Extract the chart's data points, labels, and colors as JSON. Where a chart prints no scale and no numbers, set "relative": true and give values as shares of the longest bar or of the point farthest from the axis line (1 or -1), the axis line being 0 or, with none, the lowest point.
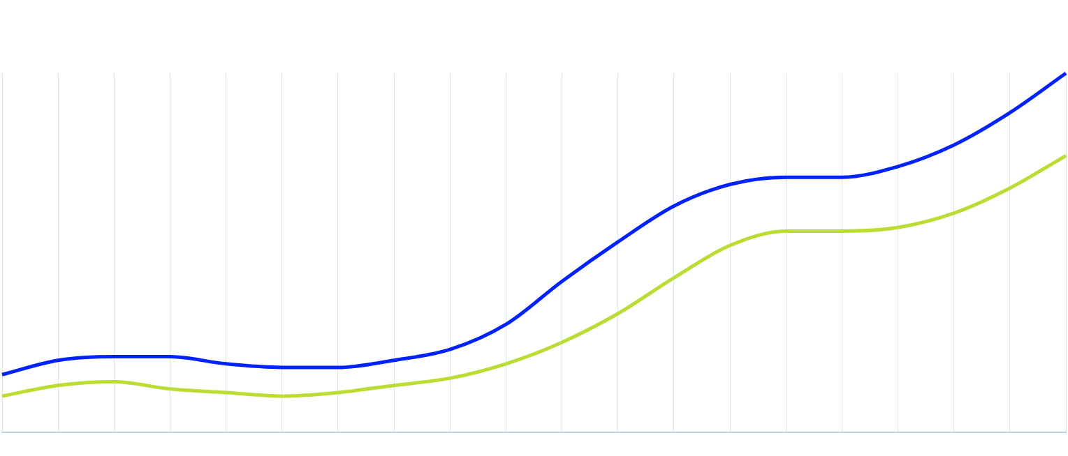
{
  "chart_data": {
    "type": "line",
    "relative": true,
    "grid": "x",
    "marker": "none",
    "line_style": "solid",
    "legend": false,
    "categories": [
      null,
      null,
      null,
      null,
      null,
      null,
      null,
      null,
      null,
      null,
      null,
      null,
      null,
      null,
      null,
      null,
      null,
      null,
      null,
      null
    ],
    "series": [
      {
        "color": "#0022ff",
        "values": [
          0.16,
          0.2,
          0.21,
          0.21,
          0.19,
          0.18,
          0.18,
          0.2,
          0.23,
          0.3,
          0.42,
          0.53,
          0.63,
          0.69,
          0.71,
          0.71,
          0.74,
          0.8,
          0.89,
          1
        ]
      },
      {
        "color": "#bbdd33",
        "values": [
          0.1,
          0.13,
          0.14,
          0.12,
          0.11,
          0.1,
          0.11,
          0.13,
          0.15,
          0.19,
          0.25,
          0.33,
          0.43,
          0.52,
          0.56,
          0.56,
          0.57,
          0.61,
          0.68,
          0.77
        ]
      }
    ]
  }
}
